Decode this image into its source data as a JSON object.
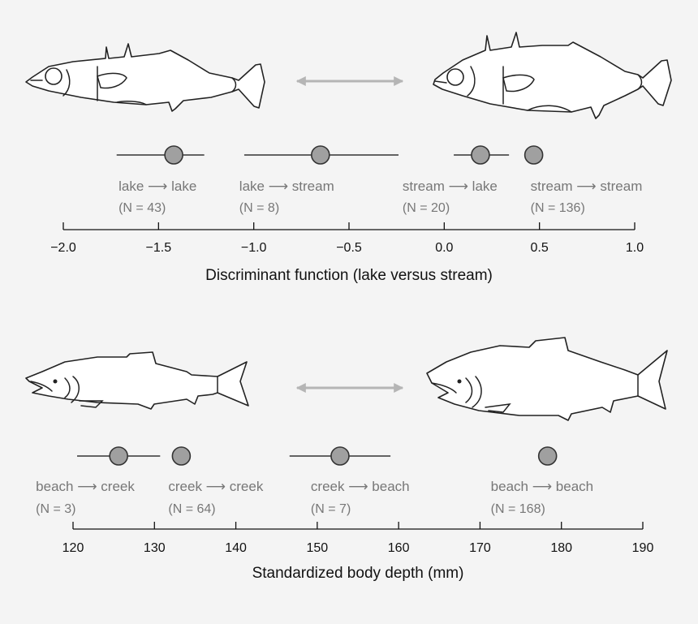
{
  "colors": {
    "background": "#f4f4f4",
    "marker_fill": "#a0a0a0",
    "marker_stroke": "#333333",
    "ci_line": "#333333",
    "double_arrow": "#b5b5b5",
    "label_text": "#777777",
    "axis": "#111111"
  },
  "chart_data": [
    {
      "type": "scatter",
      "title": "",
      "xlabel": "Discriminant function (lake versus stream)",
      "ylabel": "",
      "xlim": [
        -2.0,
        1.0
      ],
      "ticks": [
        "−2.0",
        "−1.5",
        "−1.0",
        "−0.5",
        "0.0",
        "0.5",
        "1.0"
      ],
      "tick_values": [
        -2.0,
        -1.5,
        -1.0,
        -0.5,
        0.0,
        0.5,
        1.0
      ],
      "grid": false,
      "legend": "none",
      "icons": [
        "lake-stickleback-icon",
        "stream-stickleback-icon",
        "double-arrow-icon"
      ],
      "points": [
        {
          "label": "lake ⟶ lake",
          "n": "(N = 43)",
          "x": -1.42,
          "ci": [
            -1.72,
            -1.26
          ]
        },
        {
          "label": "lake ⟶ stream",
          "n": "(N = 8)",
          "x": -0.65,
          "ci": [
            -1.05,
            -0.24
          ]
        },
        {
          "label": "stream ⟶ lake",
          "n": "(N = 20)",
          "x": 0.19,
          "ci": [
            0.05,
            0.34
          ]
        },
        {
          "label": "stream ⟶ stream",
          "n": "(N = 136)",
          "x": 0.47,
          "ci": null
        }
      ]
    },
    {
      "type": "scatter",
      "title": "",
      "xlabel": "Standardized body depth (mm)",
      "ylabel": "",
      "xlim": [
        120,
        190
      ],
      "ticks": [
        "120",
        "130",
        "140",
        "150",
        "160",
        "170",
        "180",
        "190"
      ],
      "tick_values": [
        120,
        130,
        140,
        150,
        160,
        170,
        180,
        190
      ],
      "grid": false,
      "legend": "none",
      "icons": [
        "creek-salmon-icon",
        "beach-salmon-icon",
        "double-arrow-icon"
      ],
      "points": [
        {
          "label": "beach ⟶ creek",
          "n": "(N = 3)",
          "x": 125.6,
          "ci": [
            120.5,
            130.7
          ]
        },
        {
          "label": "creek ⟶ creek",
          "n": "(N = 64)",
          "x": 133.3,
          "ci": null
        },
        {
          "label": "creek ⟶ beach",
          "n": "(N = 7)",
          "x": 152.8,
          "ci": [
            146.6,
            159.0
          ]
        },
        {
          "label": "beach ⟶ beach",
          "n": "(N = 168)",
          "x": 178.3,
          "ci": null
        }
      ]
    }
  ]
}
